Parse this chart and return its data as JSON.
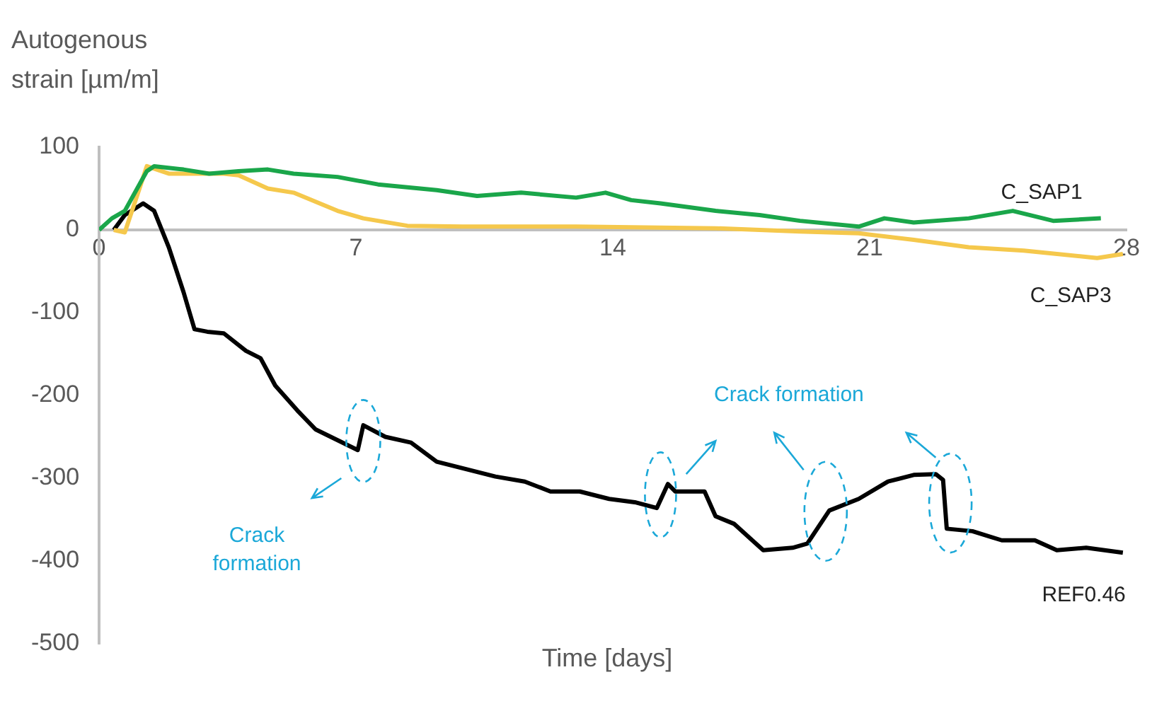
{
  "chart_data": {
    "type": "line",
    "ylabel": "Autogenous strain [µm/m]",
    "xlabel": "Time [days]",
    "xlim": [
      0,
      28
    ],
    "xticks": [
      0,
      7,
      14,
      21,
      28
    ],
    "ylim": [
      -500,
      100
    ],
    "yticks": [
      100,
      0,
      -100,
      -200,
      -300,
      -400,
      -500
    ],
    "grid": false,
    "legend": false,
    "marker": "none",
    "line_style": "solid",
    "annotations": [
      "Crack formation",
      "Crack formation"
    ],
    "series": [
      {
        "name": "C_SAP1",
        "color": "#1aa64a",
        "x": [
          0,
          0.35,
          0.7,
          1.3,
          1.5,
          2.3,
          3,
          3.8,
          4.6,
          5.3,
          6.5,
          7.6,
          9.2,
          10.3,
          11.5,
          13,
          13.8,
          14.5,
          15.3,
          16.8,
          18,
          19.1,
          20.7,
          21.4,
          22.2,
          23.7,
          24.9,
          26,
          27.3
        ],
        "values": [
          0,
          14,
          23,
          71,
          77,
          73,
          68,
          71,
          73,
          68,
          64,
          55,
          48,
          41,
          45,
          39,
          45,
          36,
          32,
          23,
          18,
          11,
          4,
          14,
          9,
          14,
          23,
          11,
          14
        ]
      },
      {
        "name": "C_SAP3",
        "color": "#f5c84c",
        "x": [
          0.4,
          0.7,
          1.1,
          1.3,
          1.9,
          3.4,
          3.8,
          4.6,
          5.3,
          6.5,
          7.2,
          8.4,
          9.9,
          13,
          16.8,
          19.1,
          20.7,
          22.2,
          23.7,
          25.2,
          27.2,
          27.9
        ],
        "values": [
          0,
          -3,
          50,
          77,
          68,
          68,
          66,
          50,
          45,
          23,
          14,
          5,
          4,
          4,
          2,
          -2,
          -4,
          -12,
          -21,
          -25,
          -34,
          -29
        ]
      },
      {
        "name": "REF0.46",
        "color": "#000000",
        "x": [
          0.4,
          0.7,
          1.2,
          1.5,
          1.9,
          2.3,
          2.6,
          2.95,
          3.4,
          4,
          4.4,
          4.8,
          5.4,
          5.9,
          6.5,
          7.05,
          7.2,
          7.8,
          8.5,
          9.2,
          10,
          10.8,
          11.6,
          12.3,
          13.1,
          13.9,
          14.6,
          15.2,
          15.5,
          15.7,
          16.5,
          16.8,
          17.3,
          18.1,
          18.9,
          19.3,
          19.9,
          20.7,
          21.5,
          22.2,
          22.8,
          23.0,
          23.1,
          23.8,
          24.6,
          25.5,
          26.1,
          26.9,
          27.9
        ],
        "values": [
          0,
          18,
          32,
          23,
          -21,
          -75,
          -120,
          -123,
          -125,
          -146,
          -155,
          -188,
          -218,
          -241,
          -254,
          -266,
          -236,
          -250,
          -257,
          -280,
          -289,
          -298,
          -304,
          -316,
          -316,
          -325,
          -329,
          -336,
          -307,
          -316,
          -316,
          -346,
          -355,
          -387,
          -384,
          -379,
          -339,
          -325,
          -304,
          -296,
          -295,
          -302,
          -361,
          -364,
          -375,
          -375,
          -387,
          -384,
          -390
        ]
      }
    ]
  }
}
